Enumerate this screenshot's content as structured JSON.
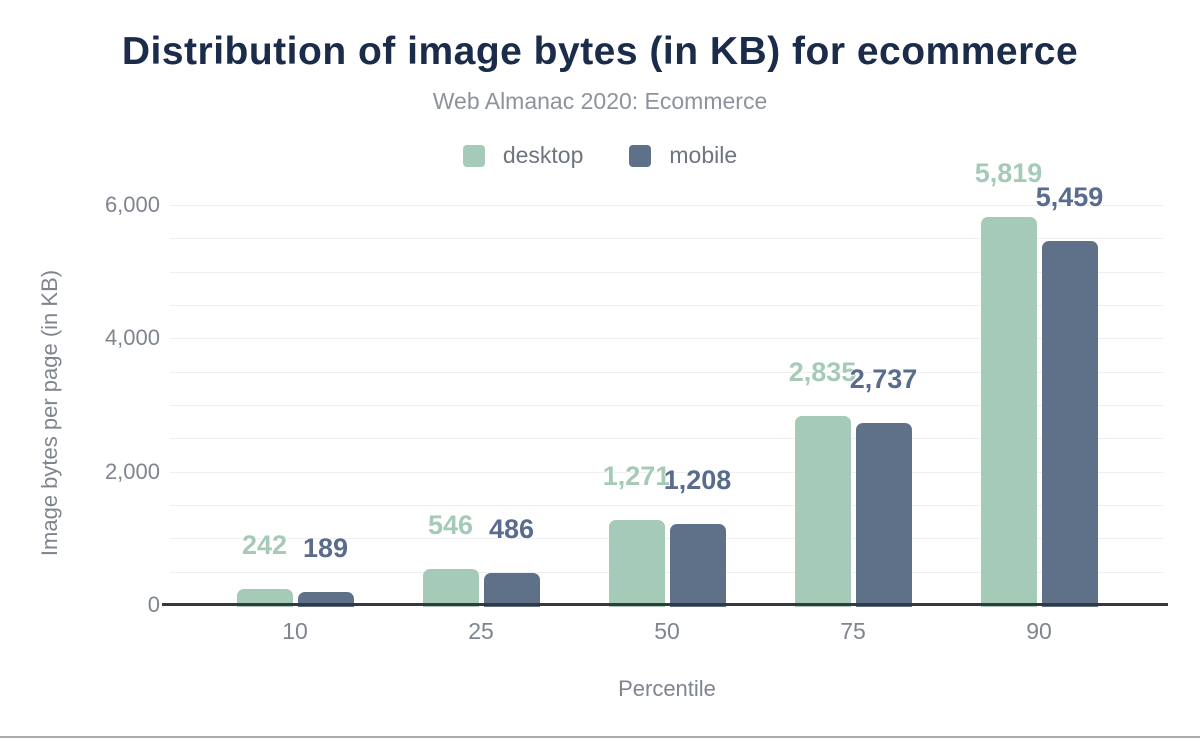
{
  "page": {
    "title": "Distribution of image bytes (in KB) for ecommerce",
    "subtitle": "Web Almanac 2020: Ecommerce"
  },
  "chart_data": {
    "type": "bar",
    "title": "Distribution of image bytes (in KB) for ecommerce",
    "subtitle": "Web Almanac 2020: Ecommerce",
    "xlabel": "Percentile",
    "ylabel": "Image bytes per page (in KB)",
    "categories": [
      "10",
      "25",
      "50",
      "75",
      "90"
    ],
    "series": [
      {
        "name": "desktop",
        "color": "#a6cab8",
        "label_color": "#a6cab8",
        "values": [
          242,
          546,
          1271,
          2835,
          5819
        ],
        "labels": [
          "242",
          "546",
          "1,271",
          "2,835",
          "5,819"
        ]
      },
      {
        "name": "mobile",
        "color": "#5e7189",
        "label_color": "#5a6c8e",
        "values": [
          189,
          486,
          1208,
          2737,
          5459
        ],
        "labels": [
          "189",
          "486",
          "1,208",
          "2,737",
          "5,459"
        ]
      }
    ],
    "ylim": [
      0,
      6000
    ],
    "yticks": [
      0,
      2000,
      4000,
      6000
    ],
    "ytick_labels": [
      "0",
      "2,000",
      "4,000",
      "6,000"
    ],
    "grid_step": 500,
    "grid": true,
    "legend_position": "top"
  },
  "colors": {
    "title": "#1b2b4a",
    "subtitle": "#8d939c",
    "axis_text": "#7f858e",
    "gridline": "#efeff2",
    "axis_line": "#35383d"
  }
}
